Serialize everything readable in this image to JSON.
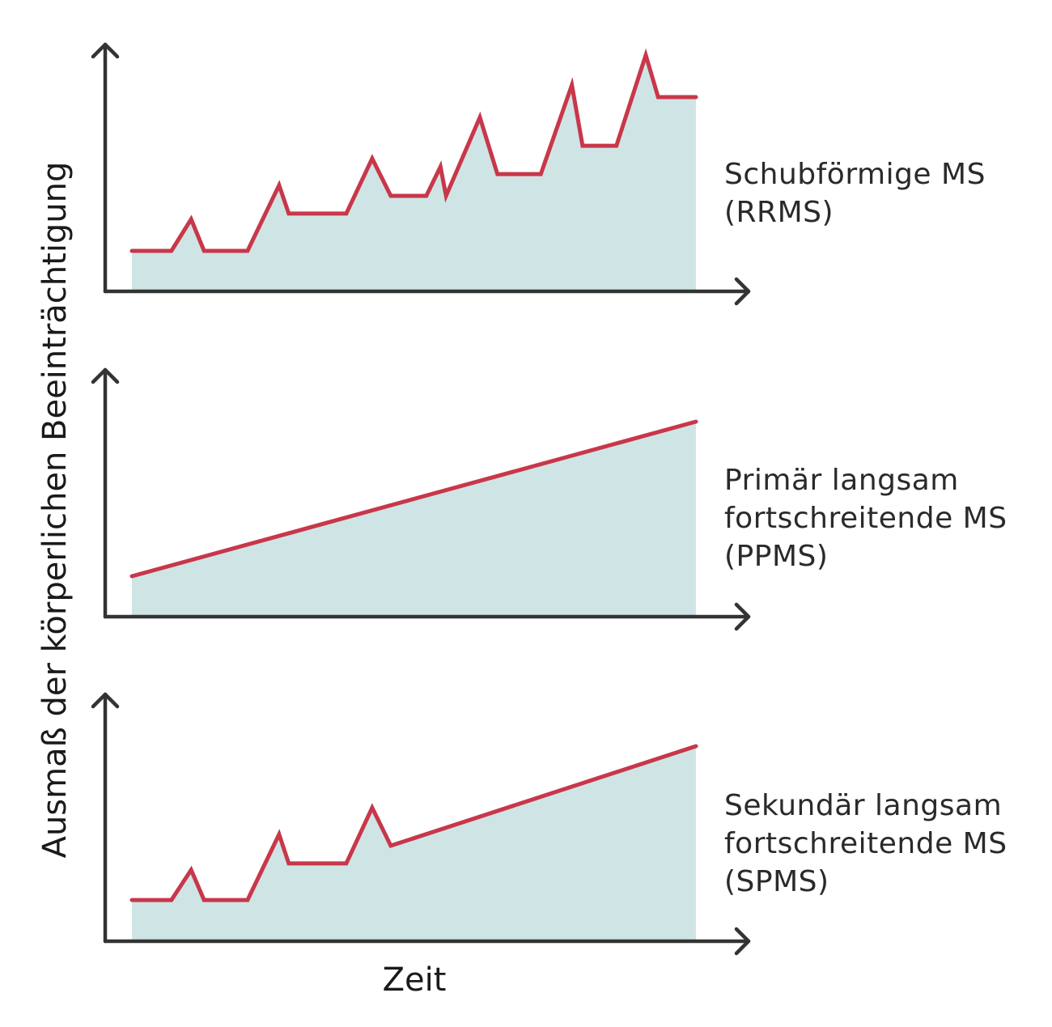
{
  "chart_data": [
    {
      "type": "area",
      "name": "Schubförmige MS (RRMS)",
      "label_lines": [
        "Schubförmige MS",
        "(RRMS)"
      ],
      "x": [
        0,
        7.0,
        10.5,
        12.8,
        20.5,
        26.1,
        27.8,
        38.0,
        42.6,
        45.9,
        52.2,
        54.7,
        55.7,
        61.7,
        64.8,
        72.5,
        78.0,
        79.9,
        85.9,
        91.1,
        93.3,
        100
      ],
      "y": [
        16.4,
        16.4,
        29.2,
        16.4,
        16.4,
        43.0,
        31.5,
        31.5,
        53.8,
        38.7,
        38.7,
        50.5,
        38.7,
        70.5,
        47.5,
        47.5,
        83.6,
        59.0,
        59.0,
        95.7,
        78.7,
        78.7
      ]
    },
    {
      "type": "area",
      "name": "Primär langsam fortschreitende MS (PPMS)",
      "label_lines": [
        "Primär langsam",
        "fortschreitende MS",
        "(PPMS)"
      ],
      "x": [
        0,
        100
      ],
      "y": [
        16.4,
        79.0
      ]
    },
    {
      "type": "area",
      "name": "Sekundär langsam fortschreitende MS (SPMS)",
      "label_lines": [
        "Sekundär langsam",
        "fortschreitende MS",
        "(SPMS)"
      ],
      "x": [
        0,
        7.0,
        10.5,
        12.8,
        20.5,
        26.1,
        27.8,
        38.0,
        42.6,
        45.9,
        100
      ],
      "y": [
        16.7,
        16.7,
        28.9,
        16.7,
        16.7,
        43.3,
        31.5,
        31.5,
        54.1,
        38.7,
        79.0
      ]
    }
  ],
  "xlabel": "Zeit",
  "ylabel": "Ausmaß der körperlichen Beeinträchtigung",
  "xlim": [
    0,
    100
  ],
  "ylim": [
    0,
    100
  ],
  "grid": false,
  "colors": {
    "line": "#c8374a",
    "fill": "#cfe5e5",
    "axis": "#333333"
  }
}
